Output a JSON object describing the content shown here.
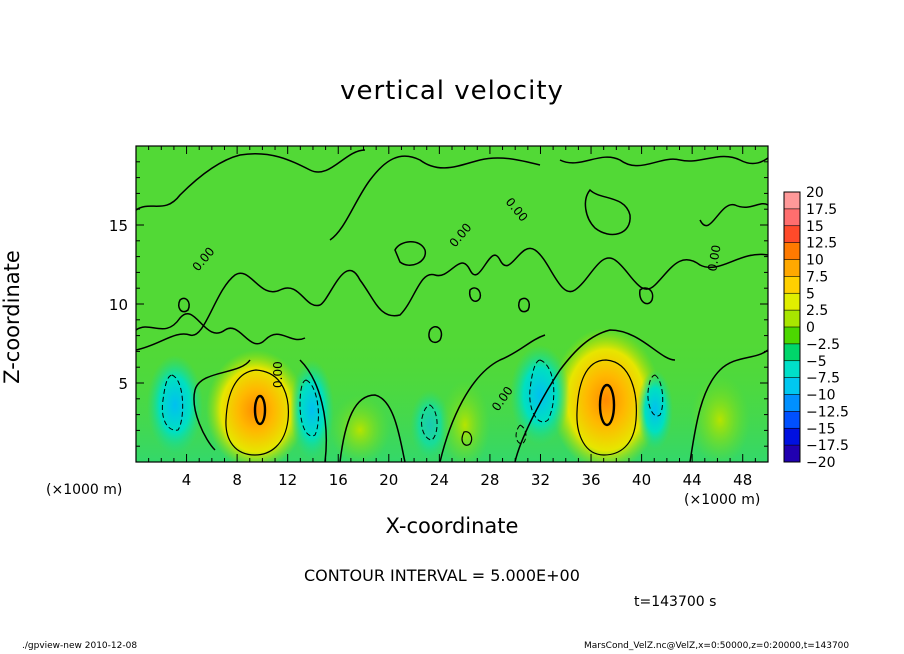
{
  "chart_data": {
    "type": "heatmap",
    "title": "vertical velocity",
    "xlabel": "X-coordinate",
    "ylabel": "Z-coordinate",
    "x_unit_left": "(×1000 m)",
    "x_unit_right": "(×1000 m)",
    "xlim": [
      0,
      50
    ],
    "ylim": [
      0,
      20
    ],
    "x_ticks": [
      4,
      8,
      12,
      16,
      20,
      24,
      28,
      32,
      36,
      40,
      44,
      48
    ],
    "y_ticks": [
      5,
      10,
      15
    ],
    "contour_interval_text": "CONTOUR INTERVAL = 5.000E+00",
    "time_text": "t=143700 s",
    "contour_labels": [
      "0.00",
      "0.00",
      "0.00",
      "0.00",
      "0.00",
      "0.00"
    ],
    "colorbar": {
      "labels": [
        "20",
        "17.5",
        "15",
        "12.5",
        "10",
        "7.5",
        "5",
        "2.5",
        "0",
        "−2.5",
        "−5",
        "−7.5",
        "−10",
        "−12.5",
        "−15",
        "−17.5",
        "−20"
      ],
      "colors": [
        "#ff9999",
        "#ff6e6e",
        "#ff4a2a",
        "#ff7a00",
        "#ffa800",
        "#ffd000",
        "#e0ee00",
        "#a8e600",
        "#4cd800",
        "#00d66a",
        "#00e0c8",
        "#00c8f0",
        "#0090ff",
        "#0050ff",
        "#0010e0",
        "#2000b0",
        "#6a20c0"
      ]
    },
    "features": [
      {
        "type": "updraft",
        "x_center": 9.5,
        "z_center": 3.2,
        "peak": 12.5
      },
      {
        "type": "updraft",
        "x_center": 37.5,
        "z_center": 3.8,
        "peak": 12.5
      },
      {
        "type": "downdraft",
        "x_center": 3.0,
        "z_center": 4.0,
        "peak": -5
      },
      {
        "type": "downdraft",
        "x_center": 13.5,
        "z_center": 3.5,
        "peak": -5
      },
      {
        "type": "downdraft",
        "x_center": 32.0,
        "z_center": 4.8,
        "peak": -5
      }
    ]
  },
  "footer": {
    "left": "./gpview-new  2010-12-08",
    "right": "MarsCond_VelZ.nc@VelZ,x=0:50000,z=0:20000,t=143700"
  },
  "colors": {
    "background_field": "#52d936",
    "frame": "#000000"
  }
}
